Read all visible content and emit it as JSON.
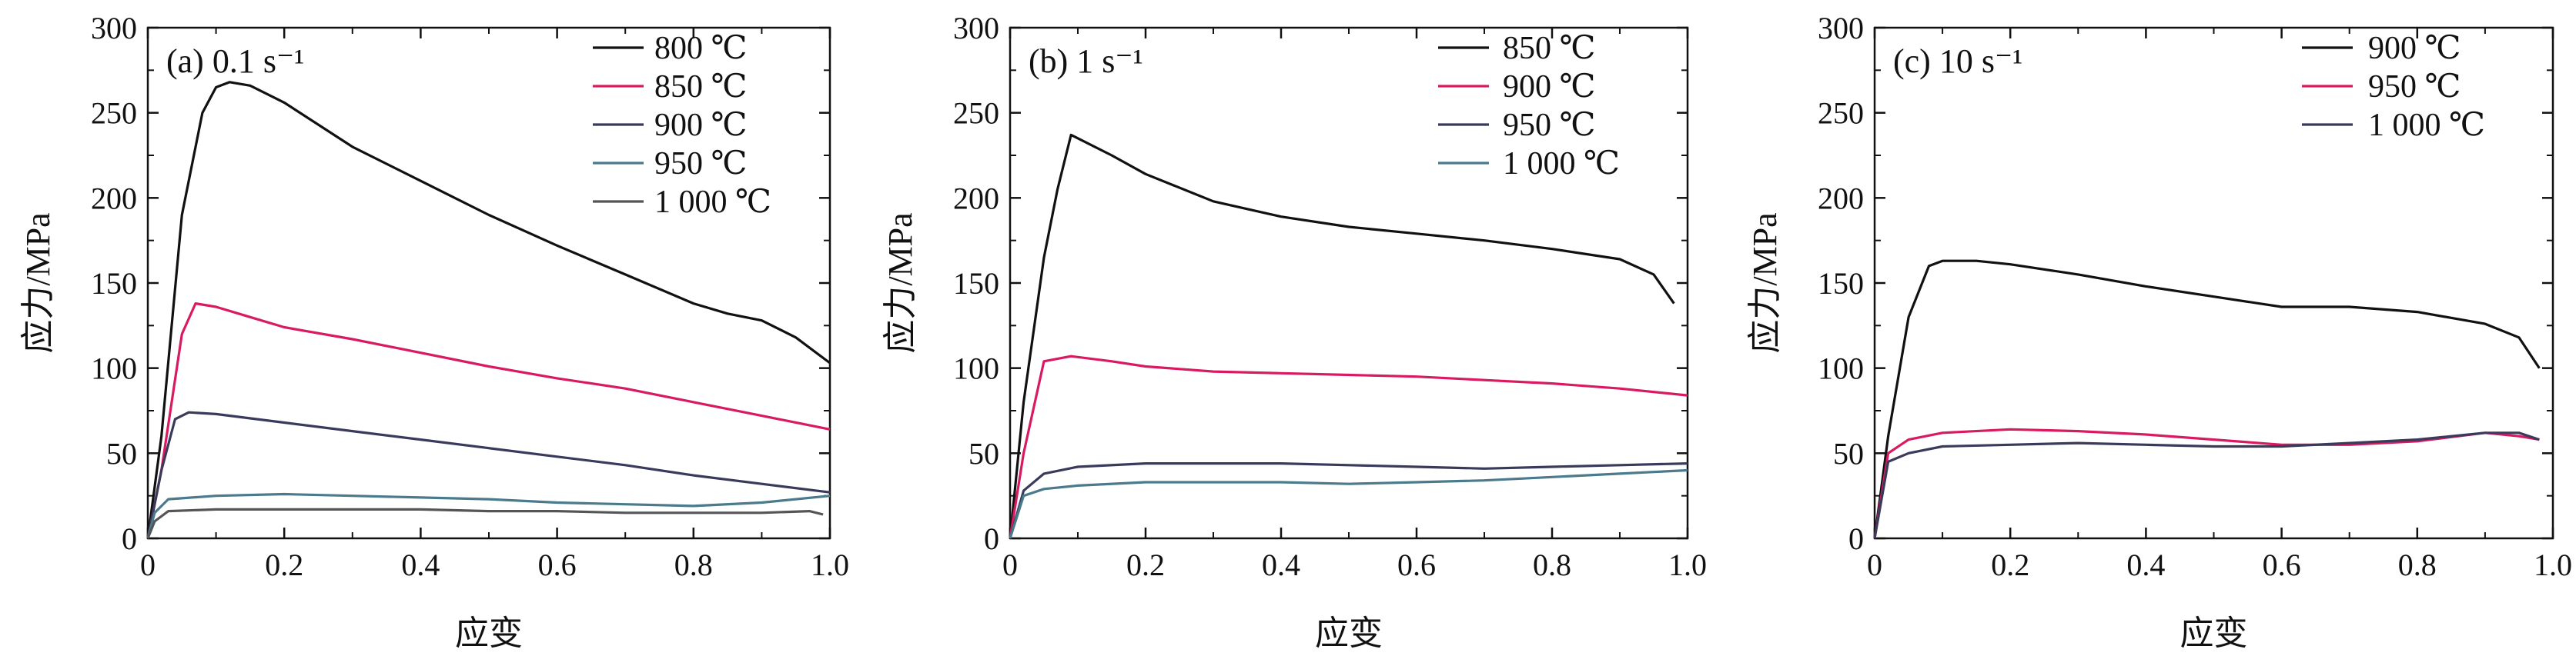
{
  "chart_data": [
    {
      "type": "line",
      "panel_label": "(a) 0.1 s⁻¹",
      "xlabel": "应变",
      "ylabel": "应力/MPa",
      "xlim": [
        0,
        1.0
      ],
      "ylim": [
        0,
        300
      ],
      "x_ticks": [
        "0",
        "0.2",
        "0.4",
        "0.6",
        "0.8",
        "1.0"
      ],
      "y_ticks": [
        "0",
        "50",
        "100",
        "150",
        "200",
        "250",
        "300"
      ],
      "legend_position": "top-right",
      "series": [
        {
          "name": "800 ℃",
          "color": "#111111",
          "points": [
            [
              0,
              0
            ],
            [
              0.02,
              60
            ],
            [
              0.05,
              190
            ],
            [
              0.08,
              250
            ],
            [
              0.1,
              265
            ],
            [
              0.12,
              268
            ],
            [
              0.15,
              266
            ],
            [
              0.2,
              256
            ],
            [
              0.3,
              230
            ],
            [
              0.4,
              210
            ],
            [
              0.5,
              190
            ],
            [
              0.6,
              172
            ],
            [
              0.7,
              155
            ],
            [
              0.8,
              138
            ],
            [
              0.85,
              132
            ],
            [
              0.9,
              128
            ],
            [
              0.95,
              118
            ],
            [
              1.0,
              103
            ]
          ]
        },
        {
          "name": "850 ℃",
          "color": "#d81b60",
          "points": [
            [
              0,
              0
            ],
            [
              0.02,
              40
            ],
            [
              0.05,
              120
            ],
            [
              0.07,
              138
            ],
            [
              0.1,
              136
            ],
            [
              0.15,
              130
            ],
            [
              0.2,
              124
            ],
            [
              0.3,
              117
            ],
            [
              0.4,
              109
            ],
            [
              0.5,
              101
            ],
            [
              0.6,
              94
            ],
            [
              0.7,
              88
            ],
            [
              0.8,
              80
            ],
            [
              0.9,
              72
            ],
            [
              1.0,
              64
            ]
          ]
        },
        {
          "name": "900 ℃",
          "color": "#3a3a5c",
          "points": [
            [
              0,
              0
            ],
            [
              0.02,
              40
            ],
            [
              0.04,
              70
            ],
            [
              0.06,
              74
            ],
            [
              0.1,
              73
            ],
            [
              0.2,
              68
            ],
            [
              0.3,
              63
            ],
            [
              0.4,
              58
            ],
            [
              0.5,
              53
            ],
            [
              0.6,
              48
            ],
            [
              0.7,
              43
            ],
            [
              0.8,
              37
            ],
            [
              0.9,
              32
            ],
            [
              1.0,
              27
            ]
          ]
        },
        {
          "name": "950 ℃",
          "color": "#4a7a8c",
          "points": [
            [
              0,
              0
            ],
            [
              0.01,
              15
            ],
            [
              0.03,
              23
            ],
            [
              0.1,
              25
            ],
            [
              0.2,
              26
            ],
            [
              0.3,
              25
            ],
            [
              0.4,
              24
            ],
            [
              0.5,
              23
            ],
            [
              0.6,
              21
            ],
            [
              0.7,
              20
            ],
            [
              0.8,
              19
            ],
            [
              0.9,
              21
            ],
            [
              1.0,
              25
            ]
          ]
        },
        {
          "name": "1 000 ℃",
          "color": "#555555",
          "points": [
            [
              0,
              0
            ],
            [
              0.01,
              10
            ],
            [
              0.03,
              16
            ],
            [
              0.1,
              17
            ],
            [
              0.2,
              17
            ],
            [
              0.3,
              17
            ],
            [
              0.4,
              17
            ],
            [
              0.5,
              16
            ],
            [
              0.6,
              16
            ],
            [
              0.7,
              15
            ],
            [
              0.8,
              15
            ],
            [
              0.9,
              15
            ],
            [
              0.97,
              16
            ],
            [
              0.99,
              14
            ]
          ]
        }
      ]
    },
    {
      "type": "line",
      "panel_label": "(b) 1 s⁻¹",
      "xlabel": "应变",
      "ylabel": "应力/MPa",
      "xlim": [
        0,
        1.0
      ],
      "ylim": [
        0,
        300
      ],
      "x_ticks": [
        "0",
        "0.2",
        "0.4",
        "0.6",
        "0.8",
        "1.0"
      ],
      "y_ticks": [
        "0",
        "50",
        "100",
        "150",
        "200",
        "250",
        "300"
      ],
      "legend_position": "top-right",
      "series": [
        {
          "name": "850 ℃",
          "color": "#111111",
          "points": [
            [
              0,
              0
            ],
            [
              0.02,
              80
            ],
            [
              0.05,
              165
            ],
            [
              0.07,
              205
            ],
            [
              0.09,
              237
            ],
            [
              0.15,
              225
            ],
            [
              0.2,
              214
            ],
            [
              0.3,
              198
            ],
            [
              0.4,
              189
            ],
            [
              0.5,
              183
            ],
            [
              0.6,
              179
            ],
            [
              0.7,
              175
            ],
            [
              0.8,
              170
            ],
            [
              0.9,
              164
            ],
            [
              0.95,
              155
            ],
            [
              0.98,
              138
            ]
          ]
        },
        {
          "name": "900 ℃",
          "color": "#d81b60",
          "points": [
            [
              0,
              0
            ],
            [
              0.02,
              50
            ],
            [
              0.05,
              104
            ],
            [
              0.09,
              107
            ],
            [
              0.15,
              104
            ],
            [
              0.2,
              101
            ],
            [
              0.3,
              98
            ],
            [
              0.4,
              97
            ],
            [
              0.5,
              96
            ],
            [
              0.6,
              95
            ],
            [
              0.7,
              93
            ],
            [
              0.8,
              91
            ],
            [
              0.9,
              88
            ],
            [
              1.0,
              84
            ]
          ]
        },
        {
          "name": "950 ℃",
          "color": "#3a3a5c",
          "points": [
            [
              0,
              0
            ],
            [
              0.02,
              28
            ],
            [
              0.05,
              38
            ],
            [
              0.1,
              42
            ],
            [
              0.2,
              44
            ],
            [
              0.3,
              44
            ],
            [
              0.4,
              44
            ],
            [
              0.5,
              43
            ],
            [
              0.6,
              42
            ],
            [
              0.7,
              41
            ],
            [
              0.8,
              42
            ],
            [
              0.9,
              43
            ],
            [
              1.0,
              44
            ]
          ]
        },
        {
          "name": "1 000 ℃",
          "color": "#4a7a8c",
          "points": [
            [
              0,
              0
            ],
            [
              0.02,
              25
            ],
            [
              0.05,
              29
            ],
            [
              0.1,
              31
            ],
            [
              0.2,
              33
            ],
            [
              0.3,
              33
            ],
            [
              0.4,
              33
            ],
            [
              0.5,
              32
            ],
            [
              0.6,
              33
            ],
            [
              0.7,
              34
            ],
            [
              0.8,
              36
            ],
            [
              0.9,
              38
            ],
            [
              0.95,
              39
            ],
            [
              1.0,
              40
            ]
          ]
        }
      ]
    },
    {
      "type": "line",
      "panel_label": "(c) 10 s⁻¹",
      "xlabel": "应变",
      "ylabel": "应力/MPa",
      "xlim": [
        0,
        1.0
      ],
      "ylim": [
        0,
        300
      ],
      "x_ticks": [
        "0",
        "0.2",
        "0.4",
        "0.6",
        "0.8",
        "1.0"
      ],
      "y_ticks": [
        "0",
        "50",
        "100",
        "150",
        "200",
        "250",
        "300"
      ],
      "legend_position": "top-right",
      "series": [
        {
          "name": "900 ℃",
          "color": "#111111",
          "points": [
            [
              0,
              0
            ],
            [
              0.02,
              60
            ],
            [
              0.05,
              130
            ],
            [
              0.08,
              160
            ],
            [
              0.1,
              163
            ],
            [
              0.15,
              163
            ],
            [
              0.2,
              161
            ],
            [
              0.3,
              155
            ],
            [
              0.4,
              148
            ],
            [
              0.5,
              142
            ],
            [
              0.6,
              136
            ],
            [
              0.7,
              136
            ],
            [
              0.8,
              133
            ],
            [
              0.9,
              126
            ],
            [
              0.95,
              118
            ],
            [
              0.98,
              100
            ]
          ]
        },
        {
          "name": "950 ℃",
          "color": "#d81b60",
          "points": [
            [
              0,
              0
            ],
            [
              0.02,
              50
            ],
            [
              0.05,
              58
            ],
            [
              0.1,
              62
            ],
            [
              0.2,
              64
            ],
            [
              0.3,
              63
            ],
            [
              0.4,
              61
            ],
            [
              0.5,
              58
            ],
            [
              0.6,
              55
            ],
            [
              0.7,
              55
            ],
            [
              0.8,
              57
            ],
            [
              0.9,
              62
            ],
            [
              0.95,
              60
            ],
            [
              0.98,
              58
            ]
          ]
        },
        {
          "name": "1 000 ℃",
          "color": "#3a3a5c",
          "points": [
            [
              0,
              0
            ],
            [
              0.02,
              45
            ],
            [
              0.05,
              50
            ],
            [
              0.1,
              54
            ],
            [
              0.2,
              55
            ],
            [
              0.3,
              56
            ],
            [
              0.4,
              55
            ],
            [
              0.5,
              54
            ],
            [
              0.6,
              54
            ],
            [
              0.7,
              56
            ],
            [
              0.8,
              58
            ],
            [
              0.9,
              62
            ],
            [
              0.95,
              62
            ],
            [
              0.98,
              58
            ]
          ]
        }
      ]
    }
  ]
}
